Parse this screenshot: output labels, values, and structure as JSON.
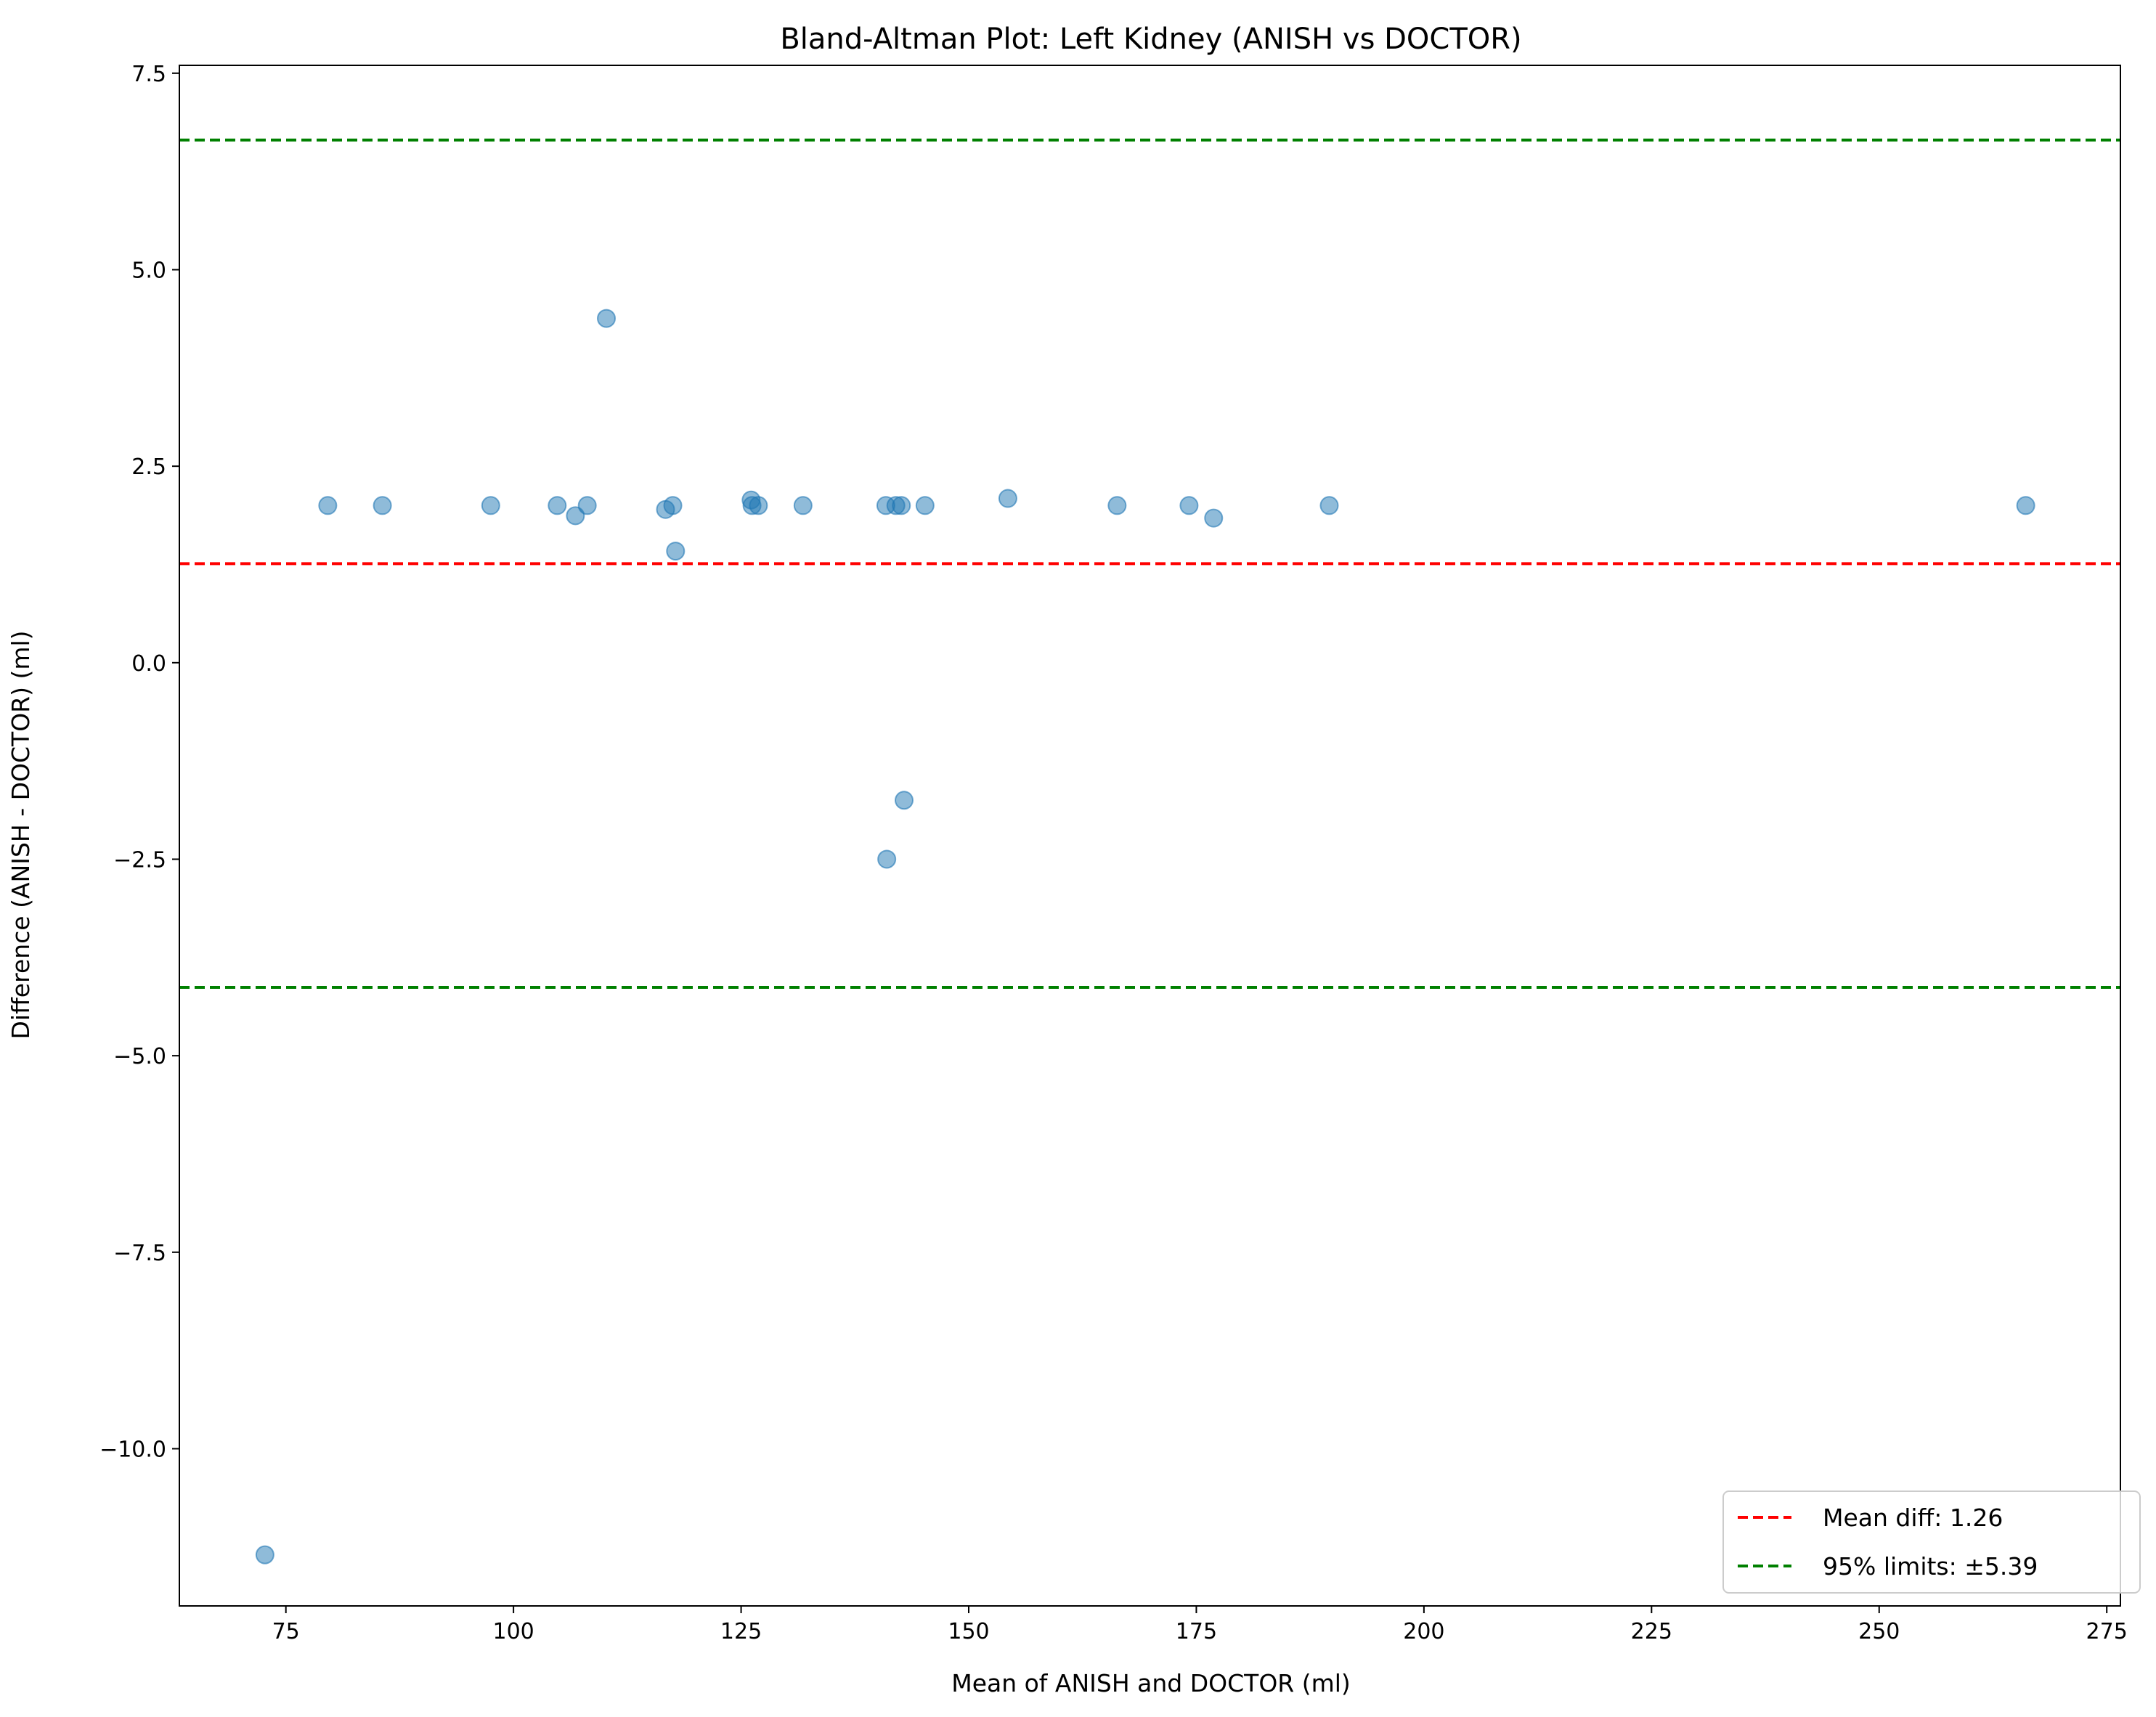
{
  "chart_data": {
    "type": "scatter",
    "title": "Bland-Altman Plot: Left Kidney (ANISH vs DOCTOR)",
    "xlabel": "Mean of ANISH and DOCTOR (ml)",
    "ylabel": "Difference (ANISH - DOCTOR) (ml)",
    "xlim": [
      63.3,
      276.5
    ],
    "ylim": [
      -12.0,
      7.6
    ],
    "xticks": [
      75,
      100,
      125,
      150,
      175,
      200,
      225,
      250,
      275
    ],
    "xtick_labels": [
      "75",
      "100",
      "125",
      "150",
      "175",
      "200",
      "225",
      "250",
      "275"
    ],
    "yticks": [
      -10.0,
      -7.5,
      -5.0,
      -2.5,
      0.0,
      2.5,
      5.0,
      7.5
    ],
    "ytick_labels": [
      "−10.0",
      "−7.5",
      "−5.0",
      "−2.5",
      "0.0",
      "2.5",
      "5.0",
      "7.5"
    ],
    "grid": false,
    "legend_position": "bottom-right",
    "point_color": "#1f77b4",
    "points": {
      "x": [
        72.7,
        79.6,
        85.6,
        97.5,
        104.8,
        106.8,
        108.1,
        110.2,
        116.7,
        117.5,
        117.8,
        126.1,
        126.2,
        126.9,
        131.8,
        140.9,
        141.0,
        142.0,
        142.6,
        142.9,
        145.2,
        154.3,
        166.3,
        174.2,
        176.9,
        189.6,
        266.1
      ],
      "y": [
        -11.35,
        2.0,
        2.0,
        2.0,
        2.0,
        1.87,
        2.0,
        4.38,
        1.95,
        2.0,
        1.42,
        2.07,
        2.0,
        2.0,
        2.0,
        2.0,
        -2.5,
        2.0,
        2.0,
        -1.75,
        2.0,
        2.09,
        2.0,
        2.0,
        1.84,
        2.0,
        2.0
      ]
    },
    "reference_lines": [
      {
        "y": 1.26,
        "color": "#ff0000",
        "label": "Mean diff: 1.26"
      },
      {
        "y": 6.65,
        "color": "#008000",
        "label": "95% limits: ±5.39"
      },
      {
        "y": -4.13,
        "color": "#008000",
        "label": ""
      }
    ],
    "legend": [
      {
        "label": "Mean diff: 1.26",
        "color": "#ff0000"
      },
      {
        "label": "95% limits: ±5.39",
        "color": "#008000"
      }
    ]
  }
}
